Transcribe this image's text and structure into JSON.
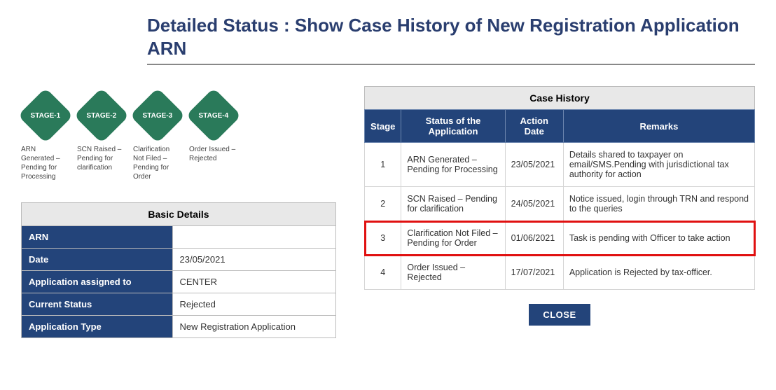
{
  "title": "Detailed Status : Show Case History of New Registration Application ARN",
  "colors": {
    "title": "#2a3e6f",
    "diamond": "#2a7a5a",
    "header_bg": "#23447a",
    "header_text": "#ffffff",
    "caption_bg": "#e8e8e8",
    "highlight_border": "#e01010",
    "border": "#bbbbbb"
  },
  "stages_flow": [
    {
      "badge": "STAGE-1",
      "caption": "ARN Generated – Pending for Processing"
    },
    {
      "badge": "STAGE-2",
      "caption": "SCN Raised – Pending for clarification"
    },
    {
      "badge": "STAGE-3",
      "caption": "Clarification Not Filed – Pending for Order"
    },
    {
      "badge": "STAGE-4",
      "caption": "Order Issued – Rejected"
    }
  ],
  "basic_details": {
    "caption": "Basic Details",
    "rows": [
      {
        "label": "ARN",
        "value": ""
      },
      {
        "label": "Date",
        "value": "23/05/2021"
      },
      {
        "label": "Application assigned to",
        "value": "CENTER"
      },
      {
        "label": "Current Status",
        "value": "Rejected"
      },
      {
        "label": "Application Type",
        "value": "New Registration Application"
      }
    ]
  },
  "case_history": {
    "caption": "Case History",
    "columns": [
      "Stage",
      "Status of the Application",
      "Action Date",
      "Remarks"
    ],
    "highlight_stage": 3,
    "rows": [
      {
        "stage": "1",
        "status": "ARN Generated – Pending for Processing",
        "date": "23/05/2021",
        "remarks": "Details shared to taxpayer on email/SMS.Pending with jurisdictional tax authority for action"
      },
      {
        "stage": "2",
        "status": "SCN Raised – Pending for clarification",
        "date": "24/05/2021",
        "remarks": "Notice issued, login through TRN and respond to the queries"
      },
      {
        "stage": "3",
        "status": "Clarification Not Filed – Pending for Order",
        "date": "01/06/2021",
        "remarks": "Task is pending with Officer to take action"
      },
      {
        "stage": "4",
        "status": "Order Issued – Rejected",
        "date": "17/07/2021",
        "remarks": "Application is Rejected by tax-officer."
      }
    ]
  },
  "close_button_label": "CLOSE"
}
